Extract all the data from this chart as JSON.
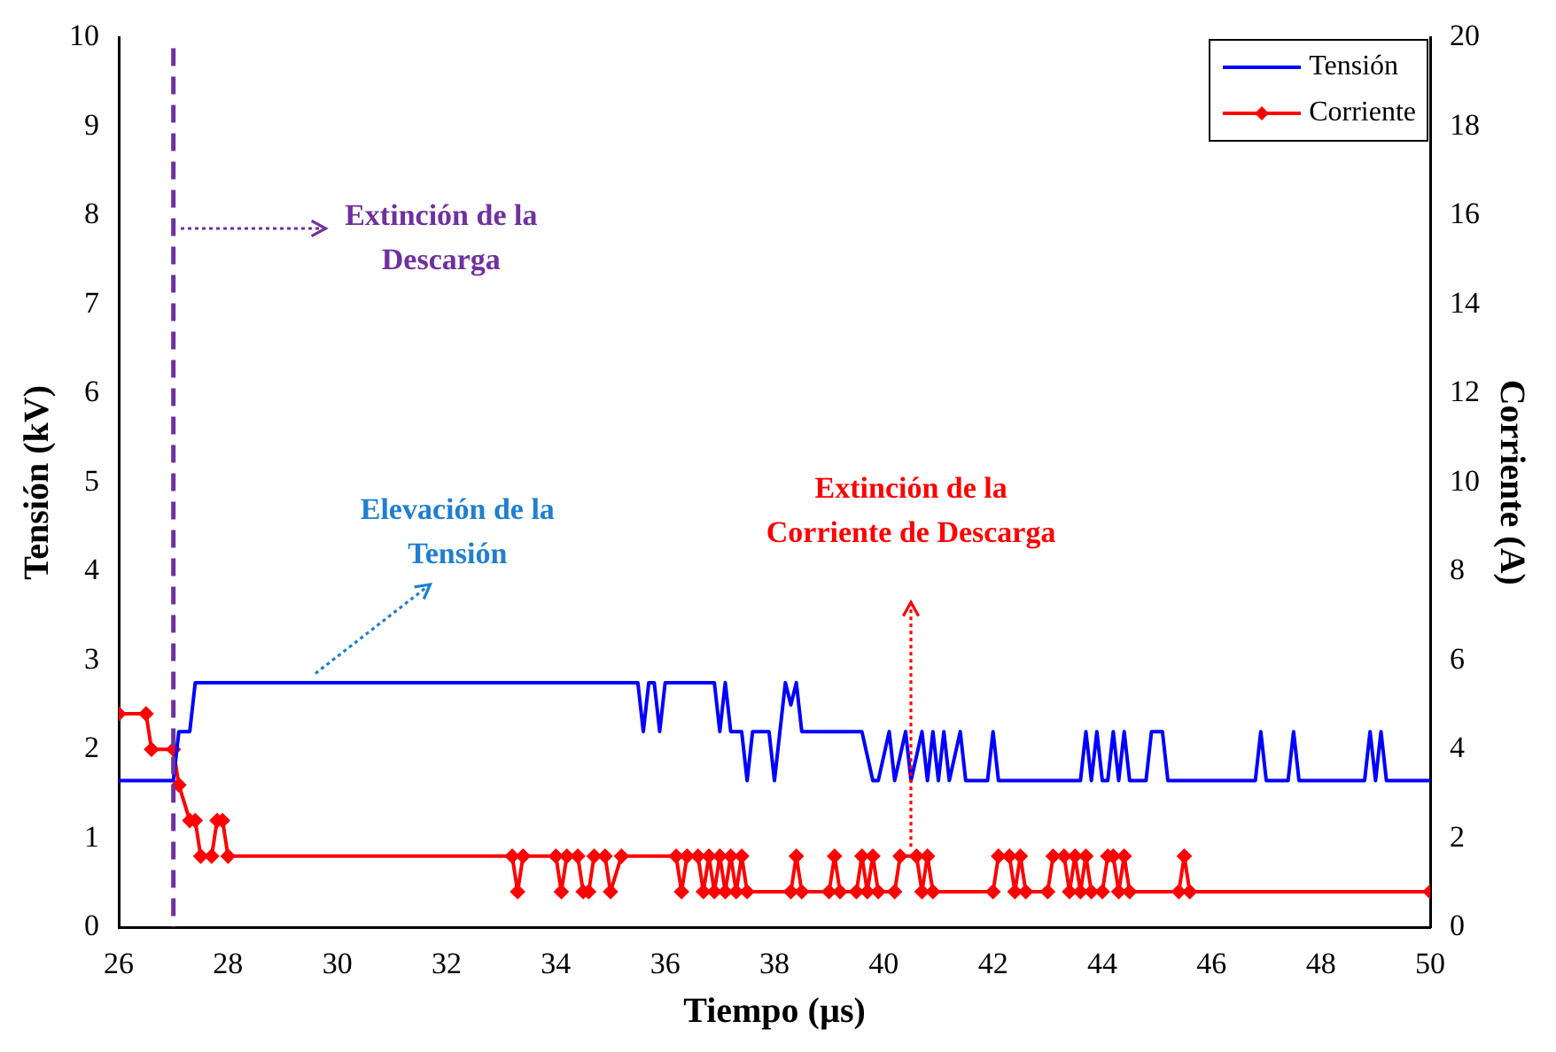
{
  "chart_data": {
    "type": "line",
    "xlabel": "Tiempo (µs)",
    "ylabel": "Tensión (kV)",
    "y2label": "Corriente (A)",
    "xlim": [
      26,
      50
    ],
    "xticks": [
      26,
      28,
      30,
      32,
      34,
      36,
      38,
      40,
      42,
      44,
      46,
      48,
      50
    ],
    "ylim": [
      0,
      10
    ],
    "yticks": [
      0,
      1,
      2,
      3,
      4,
      5,
      6,
      7,
      8,
      9,
      10
    ],
    "y2lim": [
      0,
      20
    ],
    "y2ticks": [
      0,
      2,
      4,
      6,
      8,
      10,
      12,
      14,
      16,
      18,
      20
    ],
    "grid": false,
    "legend": "top right",
    "line_style": "solid",
    "series": [
      {
        "name": "Tensión",
        "color": "#0000ff",
        "marker": "none",
        "x": [
          26,
          27.0,
          27.1,
          27.3,
          27.4,
          35.5,
          35.6,
          35.7,
          35.8,
          35.9,
          36.0,
          36.9,
          37.0,
          37.1,
          37.2,
          37.4,
          37.5,
          37.6,
          37.9,
          38.0,
          38.1,
          38.2,
          38.3,
          38.4,
          38.5,
          39.6,
          39.8,
          39.9,
          40.1,
          40.2,
          40.4,
          40.5,
          40.7,
          40.8,
          40.9,
          41.0,
          41.1,
          41.2,
          41.4,
          41.5,
          41.9,
          42.0,
          42.1,
          43.6,
          43.7,
          43.8,
          43.9,
          44.0,
          44.1,
          44.2,
          44.3,
          44.4,
          44.5,
          44.8,
          44.9,
          45.1,
          45.2,
          46.8,
          46.9,
          47.0,
          47.4,
          47.5,
          47.6,
          48.8,
          48.9,
          49.0,
          49.1,
          49.2,
          50
        ],
        "values": [
          1.65,
          1.65,
          2.2,
          2.2,
          2.75,
          2.75,
          2.2,
          2.75,
          2.75,
          2.2,
          2.75,
          2.75,
          2.2,
          2.75,
          2.2,
          2.2,
          1.65,
          2.2,
          2.2,
          1.65,
          2.2,
          2.75,
          2.5,
          2.75,
          2.2,
          2.2,
          1.65,
          1.65,
          2.2,
          1.65,
          2.2,
          1.65,
          2.2,
          1.65,
          2.2,
          1.65,
          2.2,
          1.65,
          2.2,
          1.65,
          1.65,
          2.2,
          1.65,
          1.65,
          2.2,
          1.65,
          2.2,
          1.65,
          1.65,
          2.2,
          1.65,
          2.2,
          1.65,
          1.65,
          2.2,
          2.2,
          1.65,
          1.65,
          2.2,
          1.65,
          1.65,
          2.2,
          1.65,
          1.65,
          2.2,
          1.65,
          2.2,
          1.65,
          1.65
        ]
      },
      {
        "name": "Corriente",
        "color": "#ff0000",
        "marker": "diamond",
        "axis": "y2",
        "x": [
          26,
          26.5,
          26.6,
          27.0,
          27.1,
          27.3,
          27.4,
          27.5,
          27.7,
          27.8,
          27.9,
          28.0,
          33.2,
          33.3,
          33.4,
          34.0,
          34.1,
          34.2,
          34.4,
          34.5,
          34.6,
          34.7,
          34.9,
          35.0,
          35.2,
          36.2,
          36.3,
          36.4,
          36.6,
          36.7,
          36.8,
          36.9,
          37.0,
          37.1,
          37.2,
          37.3,
          37.4,
          37.5,
          38.3,
          38.4,
          38.5,
          39.0,
          39.1,
          39.2,
          39.5,
          39.6,
          39.7,
          39.8,
          39.9,
          40.2,
          40.3,
          40.6,
          40.7,
          40.8,
          40.9,
          42.0,
          42.1,
          42.3,
          42.4,
          42.5,
          42.6,
          43.0,
          43.1,
          43.3,
          43.4,
          43.5,
          43.6,
          43.7,
          43.8,
          44.0,
          44.1,
          44.2,
          44.3,
          44.4,
          44.5,
          45.4,
          45.5,
          45.6,
          50
        ],
        "values": [
          4.8,
          4.8,
          4.0,
          4.0,
          3.2,
          2.4,
          2.4,
          1.6,
          1.6,
          2.4,
          2.4,
          1.6,
          1.6,
          0.8,
          1.6,
          1.6,
          0.8,
          1.6,
          1.6,
          0.8,
          0.8,
          1.6,
          1.6,
          0.8,
          1.6,
          1.6,
          0.8,
          1.6,
          1.6,
          0.8,
          1.6,
          0.8,
          1.6,
          0.8,
          1.6,
          0.8,
          1.6,
          0.8,
          0.8,
          1.6,
          0.8,
          0.8,
          1.6,
          0.8,
          0.8,
          1.6,
          0.8,
          1.6,
          0.8,
          0.8,
          1.6,
          1.6,
          0.8,
          1.6,
          0.8,
          0.8,
          1.6,
          1.6,
          0.8,
          1.6,
          0.8,
          0.8,
          1.6,
          1.6,
          0.8,
          1.6,
          0.8,
          1.6,
          0.8,
          0.8,
          1.6,
          1.6,
          0.8,
          1.6,
          0.8,
          0.8,
          1.6,
          0.8,
          0.8
        ]
      }
    ],
    "ref_lines": [
      {
        "axis": "x",
        "value": 27,
        "color": "#7030a0",
        "line_style": "dashed"
      }
    ],
    "annotations": [
      "Extinción de la\nDescarga",
      "Elevación de la\nTensión",
      "Extinción de la\nCorriente de Descarga"
    ]
  }
}
